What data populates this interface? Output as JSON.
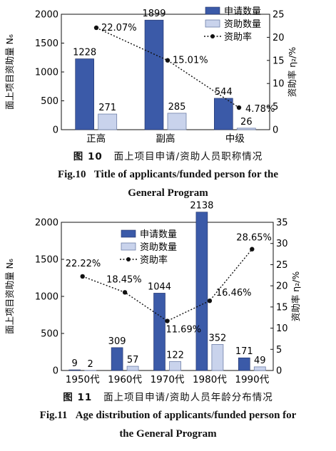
{
  "colors": {
    "applications": "#3b5aa8",
    "funded": "#c9d3ec",
    "funded_stroke": "#6f7fa8",
    "rate": "#111111"
  },
  "chart_data": [
    {
      "type": "bar",
      "categories": [
        "正高",
        "副高",
        "中级"
      ],
      "series": [
        {
          "name": "申请数量",
          "values": [
            1228,
            1899,
            544
          ],
          "labels": [
            "1228",
            "1899",
            "544"
          ]
        },
        {
          "name": "资助数量",
          "values": [
            271,
            285,
            26
          ],
          "labels": [
            "271",
            "285",
            "26"
          ]
        }
      ],
      "line_series": {
        "name": "资助率",
        "values": [
          22.07,
          15.01,
          4.78
        ],
        "labels": [
          "22.07%",
          "15.01%",
          "4.78%"
        ]
      },
      "ylabel": "面上项目资助量 N₆",
      "y2label": "资助率 η₂/%",
      "ylim": [
        0,
        2000
      ],
      "y2lim": [
        0,
        25
      ],
      "yticks": [
        0,
        500,
        1000,
        1500,
        2000
      ],
      "y2ticks": [
        0,
        5,
        10,
        15,
        20,
        25
      ],
      "legend_position": "top-right",
      "grid": false
    },
    {
      "type": "bar",
      "categories": [
        "1950代",
        "1960代",
        "1970代",
        "1980代",
        "1990代"
      ],
      "series": [
        {
          "name": "申请数量",
          "values": [
            9,
            309,
            1044,
            2138,
            171
          ],
          "labels": [
            "9",
            "309",
            "1044",
            "2138",
            "171"
          ]
        },
        {
          "name": "资助数量",
          "values": [
            2,
            57,
            122,
            352,
            49
          ],
          "labels": [
            "2",
            "57",
            "122",
            "352",
            "49"
          ]
        }
      ],
      "line_series": {
        "name": "资助率",
        "values": [
          22.22,
          18.45,
          11.69,
          16.46,
          28.65
        ],
        "labels": [
          "22.22%",
          "18.45%",
          "11.69%",
          "16.46%",
          "28.65%"
        ]
      },
      "ylabel": "面上项目资助量 N₆",
      "y2label": "资助率 η₂/%",
      "ylim": [
        0,
        2000
      ],
      "y2lim": [
        0,
        35
      ],
      "yticks": [
        0,
        500,
        1000,
        1500,
        2000
      ],
      "y2ticks": [
        0,
        5,
        10,
        15,
        20,
        25,
        30,
        35
      ],
      "legend_position": "top-center",
      "grid": false
    }
  ],
  "captions": [
    {
      "zh_number": "图 10",
      "zh_text": "面上项目申请/资助人员职称情况",
      "en_number": "Fig.10",
      "en_line1": "Title of applicants/funded person for the",
      "en_line2": "General Program"
    },
    {
      "zh_number": "图 11",
      "zh_text": "面上项目申请/资助人员年龄分布情况",
      "en_number": "Fig.11",
      "en_line1": "Age distribution of applicants/funded person for",
      "en_line2": "the General Program"
    }
  ]
}
